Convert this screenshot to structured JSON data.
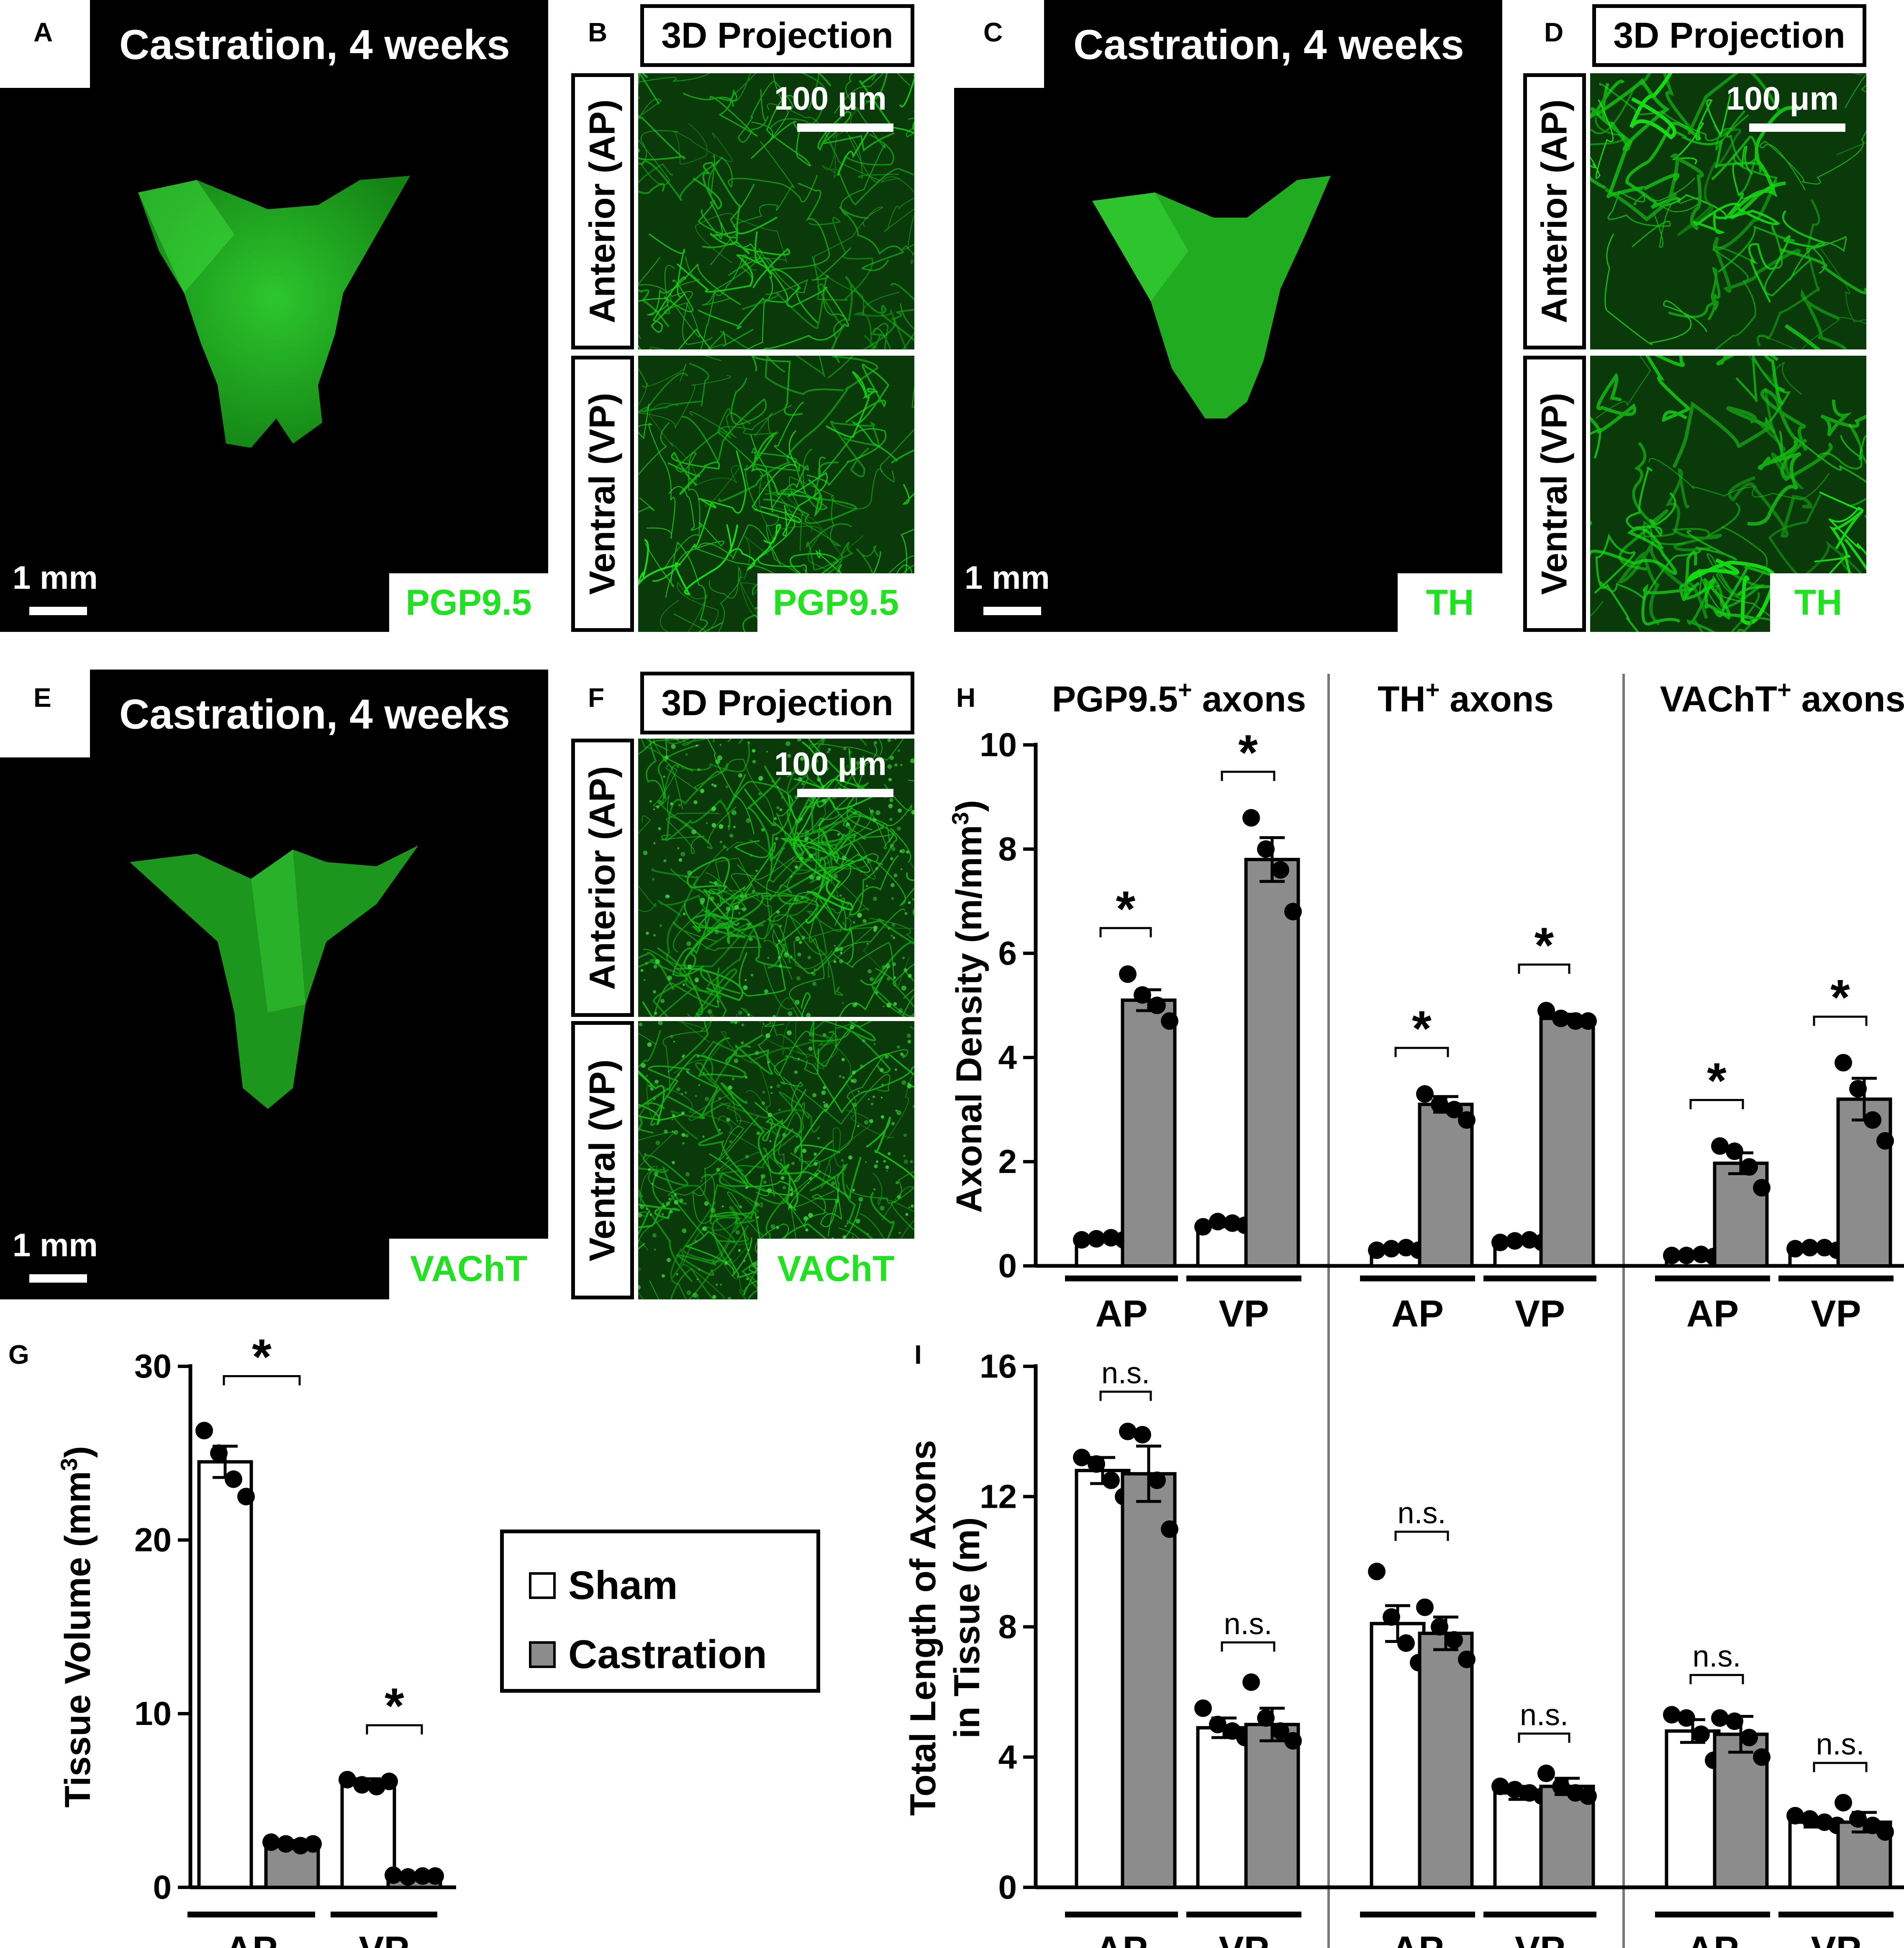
{
  "panels": {
    "A": {
      "letter": "A",
      "title": "Castration, 4 weeks",
      "scale": "1 mm",
      "stain": "PGP9.5"
    },
    "B": {
      "letter": "B",
      "projection": "3D Projection",
      "top_label": "Anterior (AP)",
      "bottom_label": "Ventral (VP)",
      "scale": "100 μm",
      "stain": "PGP9.5"
    },
    "C": {
      "letter": "C",
      "title": "Castration, 4 weeks",
      "scale": "1 mm",
      "stain": "TH"
    },
    "D": {
      "letter": "D",
      "projection": "3D Projection",
      "top_label": "Anterior (AP)",
      "bottom_label": "Ventral (VP)",
      "scale": "100 μm",
      "stain": "TH"
    },
    "E": {
      "letter": "E",
      "title": "Castration, 4 weeks",
      "scale": "1 mm",
      "stain": "VAChT"
    },
    "F": {
      "letter": "F",
      "projection": "3D Projection",
      "top_label": "Anterior (AP)",
      "bottom_label": "Ventral (VP)",
      "scale": "100 μm",
      "stain": "VAChT"
    },
    "G": {
      "letter": "G"
    },
    "H": {
      "letter": "H"
    },
    "I": {
      "letter": "I"
    }
  },
  "legend": {
    "sham": "Sham",
    "castration": "Castration"
  },
  "colors": {
    "stain_green": "#22e022",
    "tissue_green": "#2fc82f",
    "bar_castration": "#8c8c8c",
    "bar_sham": "#ffffff"
  },
  "chart_data": [
    {
      "id": "G",
      "type": "bar",
      "ylabel": "Tissue Volume (mm3)",
      "ylim": [
        0,
        30
      ],
      "yticks": [
        0,
        10,
        20,
        30
      ],
      "groups": [
        "AP",
        "VP"
      ],
      "series": [
        {
          "name": "Sham",
          "values": [
            24.5,
            6.0
          ],
          "sem": [
            0.9,
            0.25
          ],
          "points": [
            [
              26.3,
              25.0,
              23.5,
              22.5
            ],
            [
              6.2,
              5.9,
              5.8,
              6.1
            ]
          ]
        },
        {
          "name": "Castration",
          "values": [
            2.5,
            0.65
          ],
          "sem": [
            0.2,
            0.05
          ],
          "points": [
            [
              2.6,
              2.5,
              2.4,
              2.5
            ],
            [
              0.7,
              0.6,
              0.65,
              0.65
            ]
          ]
        }
      ],
      "significance": [
        "*",
        "*"
      ]
    },
    {
      "id": "H",
      "type": "bar",
      "ylabel": "Axonal Density (m/mm3)",
      "ylim": [
        0,
        10
      ],
      "yticks": [
        0,
        2,
        4,
        6,
        8,
        10
      ],
      "sections": [
        {
          "title_main": "PGP9.5",
          "title_sup": "+",
          "title_rest": " axons",
          "groups": [
            "AP",
            "VP"
          ],
          "sham": {
            "values": [
              0.52,
              0.8
            ],
            "sem": [
              0.02,
              0.05
            ],
            "points": [
              [
                0.5,
                0.52,
                0.54,
                0.5
              ],
              [
                0.75,
                0.85,
                0.82,
                0.78
              ]
            ]
          },
          "castration": {
            "values": [
              5.1,
              7.8
            ],
            "sem": [
              0.2,
              0.42
            ],
            "points": [
              [
                5.6,
                5.2,
                5.0,
                4.7
              ],
              [
                8.6,
                8.0,
                7.6,
                6.8
              ]
            ]
          },
          "significance": [
            "*",
            "*"
          ]
        },
        {
          "title_main": "TH",
          "title_sup": "+",
          "title_rest": " axons",
          "groups": [
            "AP",
            "VP"
          ],
          "sham": {
            "values": [
              0.32,
              0.47
            ],
            "sem": [
              0.02,
              0.02
            ],
            "points": [
              [
                0.3,
                0.33,
                0.35,
                0.3
              ],
              [
                0.45,
                0.48,
                0.5,
                0.45
              ]
            ]
          },
          "castration": {
            "values": [
              3.1,
              4.75
            ],
            "sem": [
              0.15,
              0.08
            ],
            "points": [
              [
                3.3,
                3.1,
                3.0,
                2.8
              ],
              [
                4.9,
                4.75,
                4.7,
                4.7
              ]
            ]
          },
          "significance": [
            "*",
            "*"
          ]
        },
        {
          "title_main": "VAChT",
          "title_sup": "+",
          "title_rest": " axons",
          "groups": [
            "AP",
            "VP"
          ],
          "sham": {
            "values": [
              0.2,
              0.33
            ],
            "sem": [
              0.01,
              0.02
            ],
            "points": [
              [
                0.2,
                0.2,
                0.22,
                0.18
              ],
              [
                0.33,
                0.35,
                0.35,
                0.3
              ]
            ]
          },
          "castration": {
            "values": [
              1.97,
              3.2
            ],
            "sem": [
              0.2,
              0.4
            ],
            "points": [
              [
                2.3,
                2.2,
                1.9,
                1.5
              ],
              [
                3.9,
                3.4,
                2.8,
                2.4
              ]
            ]
          },
          "significance": [
            "*",
            "*"
          ]
        }
      ]
    },
    {
      "id": "I",
      "type": "bar",
      "ylabel_line1": "Total Length of Axons",
      "ylabel_line2": "in Tissue (m)",
      "ylim": [
        0,
        16
      ],
      "yticks": [
        0,
        4,
        8,
        12,
        16
      ],
      "sections": [
        {
          "groups": [
            "AP",
            "VP"
          ],
          "sham": {
            "values": [
              12.8,
              4.9
            ],
            "sem": [
              0.4,
              0.3
            ],
            "points": [
              [
                13.2,
                13.0,
                12.5,
                12.0
              ],
              [
                5.5,
                5.0,
                4.8,
                4.6
              ]
            ]
          },
          "castration": {
            "values": [
              12.7,
              5.0
            ],
            "sem": [
              0.85,
              0.5
            ],
            "points": [
              [
                14.0,
                13.9,
                12.5,
                11.0
              ],
              [
                6.3,
                5.2,
                4.8,
                4.5
              ]
            ]
          },
          "significance": [
            "n.s.",
            "n.s."
          ]
        },
        {
          "groups": [
            "AP",
            "VP"
          ],
          "sham": {
            "values": [
              8.1,
              2.9
            ],
            "sem": [
              0.55,
              0.2
            ],
            "points": [
              [
                9.7,
                8.3,
                7.5,
                6.9
              ],
              [
                3.1,
                3.0,
                2.9,
                2.8
              ]
            ]
          },
          "castration": {
            "values": [
              7.8,
              3.1
            ],
            "sem": [
              0.5,
              0.25
            ],
            "points": [
              [
                8.6,
                8.0,
                7.6,
                7.0
              ],
              [
                3.5,
                3.1,
                2.9,
                2.8
              ]
            ]
          },
          "significance": [
            "n.s.",
            "n.s."
          ]
        },
        {
          "groups": [
            "AP",
            "VP"
          ],
          "sham": {
            "values": [
              4.8,
              2.0
            ],
            "sem": [
              0.35,
              0.15
            ],
            "points": [
              [
                5.3,
                5.2,
                4.7,
                3.9
              ],
              [
                2.2,
                2.1,
                2.0,
                1.9
              ]
            ]
          },
          "castration": {
            "values": [
              4.7,
              2.0
            ],
            "sem": [
              0.55,
              0.3
            ],
            "points": [
              [
                5.2,
                5.1,
                4.6,
                4.0
              ],
              [
                2.6,
                2.1,
                1.9,
                1.7
              ]
            ]
          },
          "significance": [
            "n.s.",
            "n.s."
          ]
        }
      ]
    }
  ]
}
